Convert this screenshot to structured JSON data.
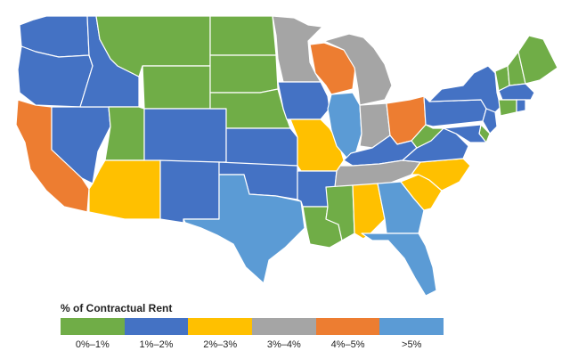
{
  "legend": {
    "title": "% of Contractual Rent",
    "items": [
      {
        "label": "0%–1%",
        "color": "#70ad47"
      },
      {
        "label": "1%–2%",
        "color": "#4472c4"
      },
      {
        "label": "2%–3%",
        "color": "#ffc000"
      },
      {
        "label": "3%–4%",
        "color": "#a5a5a5"
      },
      {
        "label": "4%–5%",
        "color": "#ed7d31"
      },
      {
        "label": ">5%",
        "color": "#5b9bd5"
      }
    ]
  },
  "states": {
    "WA": 1,
    "OR": 1,
    "CA": 4,
    "ID": 1,
    "NV": 1,
    "MT": 0,
    "WY": 0,
    "UT": 0,
    "AZ": 2,
    "CO": 1,
    "NM": 1,
    "ND": 0,
    "SD": 0,
    "NE": 0,
    "KS": 1,
    "OK": 1,
    "TX": 5,
    "MN": 3,
    "IA": 1,
    "MO": 2,
    "AR": 1,
    "LA": 0,
    "WI": 4,
    "IL": 5,
    "MI": 3,
    "IN": 3,
    "KY": 1,
    "TN": 3,
    "MS": 0,
    "AL": 2,
    "OH": 4,
    "GA": 5,
    "FL": 5,
    "SC": 2,
    "NC": 2,
    "VA": 1,
    "WV": 0,
    "PA": 1,
    "NY": 1,
    "ME": 0,
    "VT": 0,
    "NH": 0,
    "MA": 1,
    "CT": 0,
    "NJ": 1,
    "MD": 1,
    "DE": 0,
    "RI": 1
  }
}
